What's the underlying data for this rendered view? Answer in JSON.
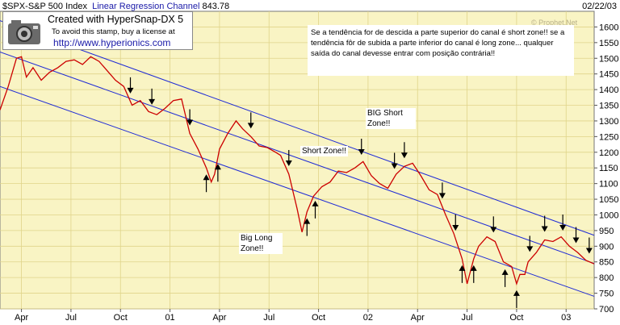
{
  "header": {
    "symbol": "$SPX",
    "name": "S&P 500 Index",
    "study": "Linear Regression Channel",
    "last_value": "843.78",
    "date": "02/22/03"
  },
  "stamp": {
    "line1": "Created with HyperSnap-DX 5",
    "line2": "To avoid this stamp, buy a license at",
    "line3": "http://www.hyperionics.com",
    "icon": "camera-icon"
  },
  "watermark": "© Prophet.Net",
  "annotations": {
    "note": "Se a tendência for de descida a parte superior do canal é short zone!! se a tendência fôr de subida a parte inferior do canal é long zone... qualquer saída do canal devesse entrar com posição contrária!!",
    "big_short": "BIG Short Zone!!",
    "short_zone": "Short Zone!!",
    "big_long": "Big Long Zone!!"
  },
  "colors": {
    "background": "#f9f4c4",
    "grid": "#e0d48a",
    "price": "#cc0000",
    "channel": "#1f2bd6",
    "arrow": "#000000"
  },
  "chart_data": {
    "type": "line",
    "title": "$SPX-S&P 500 Index",
    "ylim": [
      700,
      1650
    ],
    "y_ticks": [
      700,
      750,
      800,
      850,
      900,
      950,
      1000,
      1050,
      1100,
      1150,
      1200,
      1250,
      1300,
      1350,
      1400,
      1450,
      1500,
      1550,
      1600
    ],
    "x_range": [
      0,
      36
    ],
    "x_ticks": [
      {
        "label": "Apr",
        "x": 1.3
      },
      {
        "label": "Jul",
        "x": 4.3
      },
      {
        "label": "Oct",
        "x": 7.3
      },
      {
        "label": "01",
        "x": 10.3
      },
      {
        "label": "Apr",
        "x": 13.3
      },
      {
        "label": "Jul",
        "x": 16.3
      },
      {
        "label": "Oct",
        "x": 19.3
      },
      {
        "label": "02",
        "x": 22.3
      },
      {
        "label": "Apr",
        "x": 25.3
      },
      {
        "label": "Jul",
        "x": 28.3
      },
      {
        "label": "Oct",
        "x": 31.3
      },
      {
        "label": "03",
        "x": 34.3
      }
    ],
    "series": [
      {
        "values": [
          [
            0,
            1335
          ],
          [
            0.5,
            1410
          ],
          [
            1.0,
            1500
          ],
          [
            1.3,
            1505
          ],
          [
            1.6,
            1440
          ],
          [
            2.0,
            1470
          ],
          [
            2.5,
            1430
          ],
          [
            3.0,
            1455
          ],
          [
            3.5,
            1470
          ],
          [
            4.0,
            1490
          ],
          [
            4.5,
            1495
          ],
          [
            5.0,
            1480
          ],
          [
            5.5,
            1505
          ],
          [
            6.0,
            1490
          ],
          [
            6.5,
            1460
          ],
          [
            7.0,
            1430
          ],
          [
            7.5,
            1410
          ],
          [
            8.0,
            1350
          ],
          [
            8.5,
            1365
          ],
          [
            9.0,
            1330
          ],
          [
            9.5,
            1320
          ],
          [
            10.0,
            1340
          ],
          [
            10.5,
            1365
          ],
          [
            11.0,
            1370
          ],
          [
            11.5,
            1260
          ],
          [
            12.0,
            1210
          ],
          [
            12.5,
            1150
          ],
          [
            12.8,
            1105
          ],
          [
            13.0,
            1130
          ],
          [
            13.3,
            1210
          ],
          [
            13.8,
            1260
          ],
          [
            14.3,
            1300
          ],
          [
            14.7,
            1275
          ],
          [
            15.2,
            1250
          ],
          [
            15.7,
            1220
          ],
          [
            16.2,
            1215
          ],
          [
            16.7,
            1200
          ],
          [
            17.0,
            1190
          ],
          [
            17.5,
            1130
          ],
          [
            18.0,
            1020
          ],
          [
            18.3,
            945
          ],
          [
            18.6,
            1010
          ],
          [
            19.0,
            1060
          ],
          [
            19.5,
            1090
          ],
          [
            20.0,
            1105
          ],
          [
            20.5,
            1140
          ],
          [
            21.0,
            1135
          ],
          [
            21.5,
            1150
          ],
          [
            22.0,
            1170
          ],
          [
            22.5,
            1125
          ],
          [
            23.0,
            1100
          ],
          [
            23.5,
            1085
          ],
          [
            24.0,
            1130
          ],
          [
            24.5,
            1155
          ],
          [
            25.0,
            1165
          ],
          [
            25.5,
            1125
          ],
          [
            26.0,
            1080
          ],
          [
            26.5,
            1065
          ],
          [
            27.0,
            1000
          ],
          [
            27.5,
            940
          ],
          [
            28.0,
            860
          ],
          [
            28.3,
            780
          ],
          [
            28.7,
            860
          ],
          [
            29.0,
            900
          ],
          [
            29.5,
            930
          ],
          [
            30.0,
            915
          ],
          [
            30.5,
            850
          ],
          [
            31.0,
            835
          ],
          [
            31.3,
            780
          ],
          [
            31.5,
            810
          ],
          [
            31.8,
            810
          ],
          [
            32.0,
            850
          ],
          [
            32.5,
            880
          ],
          [
            33.0,
            920
          ],
          [
            33.5,
            915
          ],
          [
            34.0,
            930
          ],
          [
            34.5,
            900
          ],
          [
            35.0,
            880
          ],
          [
            35.5,
            855
          ],
          [
            36.0,
            843.78
          ]
        ]
      }
    ],
    "channel_lines": [
      {
        "name": "upper",
        "start": [
          0,
          1620
        ],
        "end": [
          36,
          935
        ]
      },
      {
        "name": "middle",
        "start": [
          0,
          1520
        ],
        "end": [
          36,
          845
        ]
      },
      {
        "name": "lower",
        "start": [
          0,
          1410
        ],
        "end": [
          36,
          740
        ]
      }
    ],
    "down_arrows": [
      7.9,
      9.2,
      11.5,
      15.2,
      17.5,
      21.9,
      23.9,
      24.5,
      26.8,
      27.6,
      29.9,
      32.1,
      33.0,
      34.1,
      34.9,
      35.7
    ],
    "up_arrows": [
      12.5,
      13.2,
      18.6,
      19.1,
      28.0,
      28.7,
      30.6,
      31.3
    ]
  }
}
